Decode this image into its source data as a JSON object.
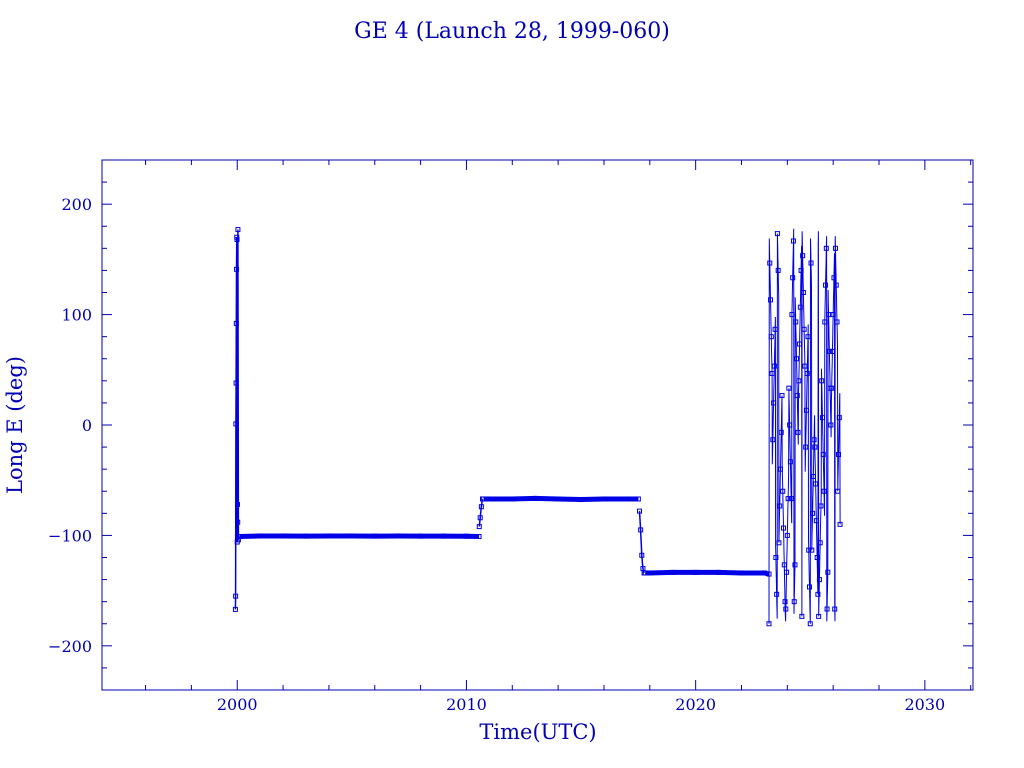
{
  "chart_data": {
    "type": "line",
    "title": "GE 4 (Launch 28, 1999-060)",
    "xlabel": "Time(UTC)",
    "ylabel": "Long E (deg)",
    "xlim": [
      1994.1,
      2032.1
    ],
    "ylim": [
      -240,
      240
    ],
    "xticks": [
      2000,
      2010,
      2020,
      2030
    ],
    "xtick_labels": [
      "2000",
      "2010",
      "2020",
      "2030"
    ],
    "yticks": [
      -200,
      -100,
      0,
      100,
      200
    ],
    "ytick_labels": [
      "−200",
      "−100",
      "0",
      "100",
      "200"
    ],
    "x_minor_step": 2,
    "y_minor_step": 20,
    "grid": false,
    "legend": "none",
    "colors": {
      "series": "#0000e6",
      "frame": "#0000b0"
    },
    "series": [
      {
        "segments": [
          {
            "phase": "launch drift",
            "x": [
              1999.92,
              1999.93,
              1999.94,
              1999.95,
              1999.96,
              1999.97,
              1999.98,
              1999.99,
              2000.0,
              2000.01,
              2000.02,
              2000.03,
              2000.05,
              2000.07
            ],
            "y": [
              -167,
              -155,
              1,
              38,
              92,
              141,
              170,
              168,
              -106,
              -72,
              -88,
              177,
              -104,
              -101
            ]
          },
          {
            "phase": "station -101",
            "x": [
              2000.1,
              2001,
              2002,
              2003,
              2004,
              2005,
              2006,
              2007,
              2008,
              2009,
              2010,
              2010.55
            ],
            "y": [
              -101,
              -100.5,
              -100.5,
              -100.6,
              -100.5,
              -100.5,
              -100.6,
              -100.5,
              -100.6,
              -100.6,
              -100.7,
              -101
            ]
          },
          {
            "phase": "relocation",
            "x": [
              2010.56,
              2010.6,
              2010.65,
              2010.7
            ],
            "y": [
              -92,
              -84,
              -74,
              -67
            ]
          },
          {
            "phase": "station -67",
            "x": [
              2010.75,
              2011,
              2012,
              2013,
              2014,
              2015,
              2016,
              2017,
              2017.5
            ],
            "y": [
              -67,
              -67,
              -67,
              -66.5,
              -67,
              -67.5,
              -67,
              -67,
              -67
            ]
          },
          {
            "phase": "relocation",
            "x": [
              2017.55,
              2017.6,
              2017.65,
              2017.7,
              2017.75
            ],
            "y": [
              -78,
              -95,
              -118,
              -130,
              -134
            ]
          },
          {
            "phase": "station -134",
            "x": [
              2017.8,
              2018,
              2019,
              2020,
              2021,
              2022,
              2023,
              2023.2
            ],
            "y": [
              -134,
              -134,
              -133.5,
              -133.5,
              -133.5,
              -134,
              -134,
              -135
            ]
          },
          {
            "phase": "end-of-life drift",
            "x": [
              2023.2,
              2026.3
            ],
            "y": [
              -180,
              -90
            ],
            "drift_rate_deg_per_year": 1000
          }
        ]
      }
    ]
  }
}
